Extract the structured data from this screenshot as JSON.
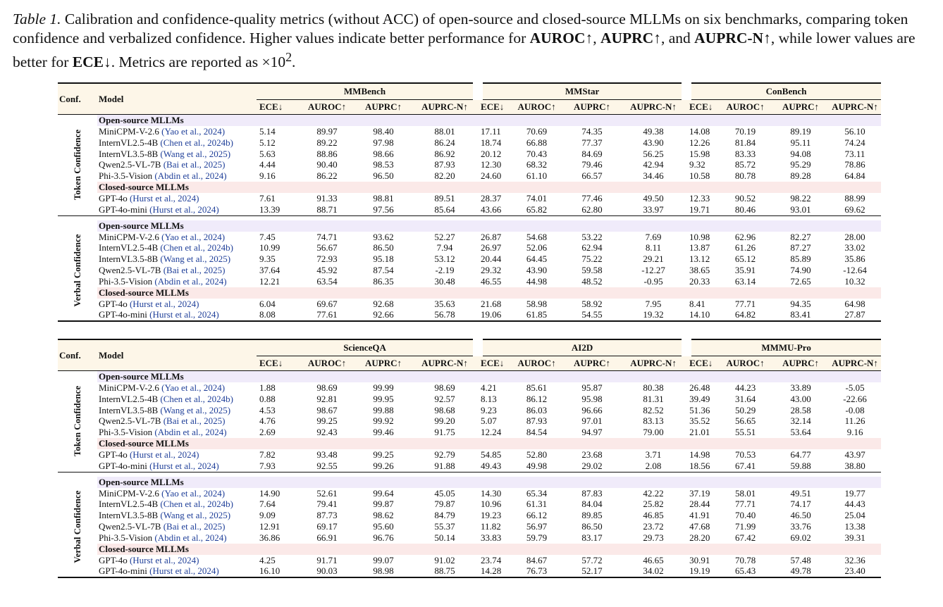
{
  "caption": {
    "label": "Table 1.",
    "segments": [
      {
        "text": " Calibration and confidence-quality metrics (without ACC) of open-source and closed-source MLLMs on six benchmarks, comparing token confidence and verbalized confidence.  Higher values indicate better performance for ",
        "bold": false
      },
      {
        "text": "AUROC↑",
        "bold": true
      },
      {
        "text": ", ",
        "bold": false
      },
      {
        "text": "AUPRC↑",
        "bold": true
      },
      {
        "text": ", and ",
        "bold": false
      },
      {
        "text": "AUPRC-N↑",
        "bold": true
      },
      {
        "text": ", while lower values are better for ",
        "bold": false
      },
      {
        "text": "ECE↓",
        "bold": true
      },
      {
        "text": ". Metrics are reported as ×10",
        "bold": false
      }
    ],
    "superscript": "2",
    "tail": "."
  },
  "header": {
    "conf": "Conf.",
    "model": "Model"
  },
  "metrics": [
    "ECE↓",
    "AUROC↑",
    "AUPRC↑",
    "AUPRC-N↑"
  ],
  "section_labels": {
    "open": "Open-source MLLMs",
    "closed": "Closed-source MLLMs"
  },
  "colors": {
    "header_bg": "#fdf6e8",
    "open_bg": "#f0ebfa",
    "closed_bg": "#fbe9e8",
    "cite": "#1f3f99"
  },
  "tables": [
    {
      "benchmarks": [
        "MMBench",
        "MMStar",
        "ConBench"
      ],
      "groups": [
        {
          "conf": "Token Confidence",
          "open": [
            {
              "model": "MiniCPM-V-2.6",
              "cite": "(Yao et al., 2024)",
              "values": [
                "5.14",
                "89.97",
                "98.40",
                "88.01",
                "17.11",
                "70.69",
                "74.35",
                "49.38",
                "14.08",
                "70.19",
                "89.19",
                "56.10"
              ]
            },
            {
              "model": "InternVL2.5-4B",
              "cite": "(Chen et al., 2024b)",
              "values": [
                "5.12",
                "89.22",
                "97.98",
                "86.24",
                "18.74",
                "66.88",
                "77.37",
                "43.90",
                "12.26",
                "81.84",
                "95.11",
                "74.24"
              ]
            },
            {
              "model": "InternVL3.5-8B",
              "cite": "(Wang et al., 2025)",
              "values": [
                "5.63",
                "88.86",
                "98.66",
                "86.92",
                "20.12",
                "70.43",
                "84.69",
                "56.25",
                "15.98",
                "83.33",
                "94.08",
                "73.11"
              ]
            },
            {
              "model": "Qwen2.5-VL-7B",
              "cite": "(Bai et al., 2025)",
              "values": [
                "4.44",
                "90.40",
                "98.53",
                "87.93",
                "12.30",
                "68.32",
                "79.46",
                "42.94",
                "9.32",
                "85.72",
                "95.29",
                "78.86"
              ]
            },
            {
              "model": "Phi-3.5-Vision",
              "cite": "(Abdin et al., 2024)",
              "values": [
                "9.16",
                "86.22",
                "96.50",
                "82.20",
                "24.60",
                "61.10",
                "66.57",
                "34.46",
                "10.58",
                "80.78",
                "89.28",
                "64.84"
              ]
            }
          ],
          "closed": [
            {
              "model": "GPT-4o",
              "cite": "(Hurst et al., 2024)",
              "values": [
                "7.61",
                "91.33",
                "98.81",
                "89.51",
                "28.37",
                "74.01",
                "77.46",
                "49.50",
                "12.33",
                "90.52",
                "98.22",
                "88.99"
              ]
            },
            {
              "model": "GPT-4o-mini",
              "cite": "(Hurst et al., 2024)",
              "values": [
                "13.39",
                "88.71",
                "97.56",
                "85.64",
                "43.66",
                "65.82",
                "62.80",
                "33.97",
                "19.71",
                "80.46",
                "93.01",
                "69.62"
              ]
            }
          ]
        },
        {
          "conf": "Verbal Confidence",
          "open": [
            {
              "model": "MiniCPM-V-2.6",
              "cite": "(Yao et al., 2024)",
              "values": [
                "7.45",
                "74.71",
                "93.62",
                "52.27",
                "26.87",
                "54.68",
                "53.22",
                "7.69",
                "10.98",
                "62.96",
                "82.27",
                "28.00"
              ]
            },
            {
              "model": "InternVL2.5-4B",
              "cite": "(Chen et al., 2024b)",
              "values": [
                "10.99",
                "56.67",
                "86.50",
                "7.94",
                "26.97",
                "52.06",
                "62.94",
                "8.11",
                "13.87",
                "61.26",
                "87.27",
                "33.02"
              ]
            },
            {
              "model": "InternVL3.5-8B",
              "cite": "(Wang et al., 2025)",
              "values": [
                "9.35",
                "72.93",
                "95.18",
                "53.12",
                "20.44",
                "64.45",
                "75.22",
                "29.21",
                "13.12",
                "65.12",
                "85.89",
                "35.86"
              ]
            },
            {
              "model": "Qwen2.5-VL-7B",
              "cite": "(Bai et al., 2025)",
              "values": [
                "37.64",
                "45.92",
                "87.54",
                "-2.19",
                "29.32",
                "43.90",
                "59.58",
                "-12.27",
                "38.65",
                "35.91",
                "74.90",
                "-12.64"
              ]
            },
            {
              "model": "Phi-3.5-Vision",
              "cite": "(Abdin et al., 2024)",
              "values": [
                "12.21",
                "63.54",
                "86.35",
                "30.48",
                "46.55",
                "44.98",
                "48.52",
                "-0.95",
                "20.33",
                "63.14",
                "72.65",
                "10.32"
              ]
            }
          ],
          "closed": [
            {
              "model": "GPT-4o",
              "cite": "(Hurst et al., 2024)",
              "values": [
                "6.04",
                "69.67",
                "92.68",
                "35.63",
                "21.68",
                "58.98",
                "58.92",
                "7.95",
                "8.41",
                "77.71",
                "94.35",
                "64.98"
              ]
            },
            {
              "model": "GPT-4o-mini",
              "cite": "(Hurst et al., 2024)",
              "values": [
                "8.08",
                "77.61",
                "92.66",
                "56.78",
                "19.06",
                "61.85",
                "54.55",
                "19.32",
                "14.10",
                "64.82",
                "83.41",
                "27.87"
              ]
            }
          ]
        }
      ]
    },
    {
      "benchmarks": [
        "ScienceQA",
        "AI2D",
        "MMMU-Pro"
      ],
      "groups": [
        {
          "conf": "Token Confidence",
          "open": [
            {
              "model": "MiniCPM-V-2.6",
              "cite": "(Yao et al., 2024)",
              "values": [
                "1.88",
                "98.69",
                "99.99",
                "98.69",
                "4.21",
                "85.61",
                "95.87",
                "80.38",
                "26.48",
                "44.23",
                "33.89",
                "-5.05"
              ]
            },
            {
              "model": "InternVL2.5-4B",
              "cite": "(Chen et al., 2024b)",
              "values": [
                "0.88",
                "92.81",
                "99.95",
                "92.57",
                "8.13",
                "86.12",
                "95.98",
                "81.31",
                "39.49",
                "31.64",
                "43.00",
                "-22.66"
              ]
            },
            {
              "model": "InternVL3.5-8B",
              "cite": "(Wang et al., 2025)",
              "values": [
                "4.53",
                "98.67",
                "99.88",
                "98.68",
                "9.23",
                "86.03",
                "96.66",
                "82.52",
                "51.36",
                "50.29",
                "28.58",
                "-0.08"
              ]
            },
            {
              "model": "Qwen2.5-VL-7B",
              "cite": "(Bai et al., 2025)",
              "values": [
                "4.76",
                "99.25",
                "99.92",
                "99.20",
                "5.07",
                "87.93",
                "97.01",
                "83.13",
                "35.52",
                "56.65",
                "32.14",
                "11.26"
              ]
            },
            {
              "model": "Phi-3.5-Vision",
              "cite": "(Abdin et al., 2024)",
              "values": [
                "2.69",
                "92.43",
                "99.46",
                "91.75",
                "12.24",
                "84.54",
                "94.97",
                "79.00",
                "21.01",
                "55.51",
                "53.64",
                "9.16"
              ]
            }
          ],
          "closed": [
            {
              "model": "GPT-4o",
              "cite": "(Hurst et al., 2024)",
              "values": [
                "7.82",
                "93.48",
                "99.25",
                "92.79",
                "54.85",
                "52.80",
                "23.68",
                "3.71",
                "14.98",
                "70.53",
                "64.77",
                "43.97"
              ]
            },
            {
              "model": "GPT-4o-mini",
              "cite": "(Hurst et al., 2024)",
              "values": [
                "7.93",
                "92.55",
                "99.26",
                "91.88",
                "49.43",
                "49.98",
                "29.02",
                "2.08",
                "18.56",
                "67.41",
                "59.88",
                "38.80"
              ]
            }
          ]
        },
        {
          "conf": "Verbal Confidence",
          "open": [
            {
              "model": "MiniCPM-V-2.6",
              "cite": "(Yao et al., 2024)",
              "values": [
                "14.90",
                "52.61",
                "99.64",
                "45.05",
                "14.30",
                "65.34",
                "87.83",
                "42.22",
                "37.19",
                "58.01",
                "49.51",
                "19.77"
              ]
            },
            {
              "model": "InternVL2.5-4B",
              "cite": "(Chen et al., 2024b)",
              "values": [
                "7.64",
                "79.41",
                "99.87",
                "79.87",
                "10.96",
                "61.31",
                "84.04",
                "25.82",
                "28.44",
                "77.71",
                "74.17",
                "44.43"
              ]
            },
            {
              "model": "InternVL3.5-8B",
              "cite": "(Wang et al., 2025)",
              "values": [
                "9.09",
                "87.73",
                "98.62",
                "84.79",
                "19.23",
                "66.12",
                "89.85",
                "46.85",
                "41.91",
                "70.40",
                "46.50",
                "25.04"
              ]
            },
            {
              "model": "Qwen2.5-VL-7B",
              "cite": "(Bai et al., 2025)",
              "values": [
                "12.91",
                "69.17",
                "95.60",
                "55.37",
                "11.82",
                "56.97",
                "86.50",
                "23.72",
                "47.68",
                "71.99",
                "33.76",
                "13.38"
              ]
            },
            {
              "model": "Phi-3.5-Vision",
              "cite": "(Abdin et al., 2024)",
              "values": [
                "36.86",
                "66.91",
                "96.76",
                "50.14",
                "33.83",
                "59.79",
                "83.17",
                "29.73",
                "28.20",
                "67.42",
                "69.02",
                "39.31"
              ]
            }
          ],
          "closed": [
            {
              "model": "GPT-4o",
              "cite": "(Hurst et al., 2024)",
              "values": [
                "4.25",
                "91.71",
                "99.07",
                "91.02",
                "23.74",
                "84.67",
                "57.72",
                "46.65",
                "30.91",
                "70.78",
                "57.48",
                "32.36"
              ]
            },
            {
              "model": "GPT-4o-mini",
              "cite": "(Hurst et al., 2024)",
              "values": [
                "16.10",
                "90.03",
                "98.98",
                "88.75",
                "14.28",
                "76.73",
                "52.17",
                "34.02",
                "19.19",
                "65.43",
                "49.78",
                "23.40"
              ]
            }
          ]
        }
      ]
    }
  ]
}
